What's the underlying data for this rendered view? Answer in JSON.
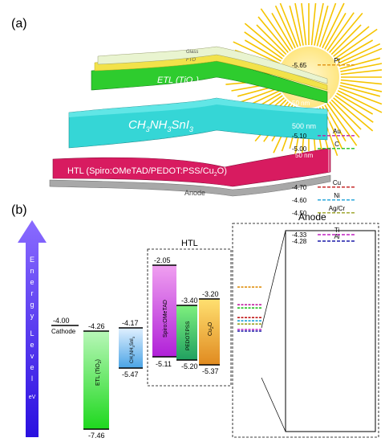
{
  "panel_a": {
    "label": "(a)",
    "layers": {
      "glass": "Glass",
      "fto": "FTO",
      "etl": "ETL (TiO",
      "etl_sub": "2",
      "etl_end": ")",
      "perov_a": "CH",
      "perov_s1": "3",
      "perov_b": "NH",
      "perov_s2": "3",
      "perov_c": "SnI",
      "perov_s3": "3",
      "htl": "HTL (Spiro:OMeTAD/PEDOT:PSS/Cu",
      "htl_sub": "2",
      "htl_end": "O)",
      "anode": "Anode"
    },
    "thickness": {
      "etl": "50 nm",
      "perovskite": "500 nm",
      "htl": "50 nm"
    },
    "colors": {
      "sun": "#f5c400",
      "etl": "#2ecc2e",
      "perovskite": "#35d6d6",
      "htl": "#d81b60",
      "anode": "#a0a0a0",
      "fto": "#f2e24a"
    }
  },
  "panel_b": {
    "label": "(b)",
    "energy_arrow_letters": [
      "E",
      "n",
      "e",
      "r",
      "g",
      "y",
      "",
      "L",
      "e",
      "v",
      "e",
      "l",
      "",
      "eV"
    ],
    "htl_title": "HTL",
    "anode_title": "Anode",
    "cathode": {
      "label": "Cathode",
      "level": "-4.00"
    },
    "etl": {
      "name": "ETL (TiO",
      "sub": "2",
      "end": ")",
      "top": "-4.26",
      "bottom": "-7.46"
    },
    "perovskite": {
      "name": "CH",
      "s1": "3",
      "n2": "NH",
      "s2": "3",
      "n3": "SnI",
      "s3": "3",
      "top": "-4.17",
      "bottom": "-5.47"
    },
    "spiro": {
      "name": "Spiro:OMeTAD",
      "top": "-2.05",
      "bottom": "-5.11"
    },
    "pedot": {
      "name": "PEDOT:PSS",
      "top": "-3.40",
      "bottom": "-5.20"
    },
    "cu2o": {
      "name": "Cu",
      "sub": "2",
      "end": "O",
      "top": "-3.20",
      "bottom": "-5.37"
    },
    "anode_metals": [
      {
        "name": "Al",
        "level": "-4.28",
        "color": "#1a1aa8"
      },
      {
        "name": "Ti",
        "level": "-4.33",
        "color": "#c020c0"
      },
      {
        "name": "Ag/Cr",
        "level": "-4.50",
        "color": "#9aa020"
      },
      {
        "name": "Ni",
        "level": "-4.60",
        "color": "#1aa0d8"
      },
      {
        "name": "Cu",
        "level": "-4.70",
        "color": "#c01818"
      },
      {
        "name": "C",
        "level": "-5.00",
        "color": "#20c020"
      },
      {
        "name": "Au",
        "level": "-5.10",
        "color": "#c020a0"
      },
      {
        "name": "Pt",
        "level": "-5.65",
        "color": "#e09010"
      }
    ]
  }
}
